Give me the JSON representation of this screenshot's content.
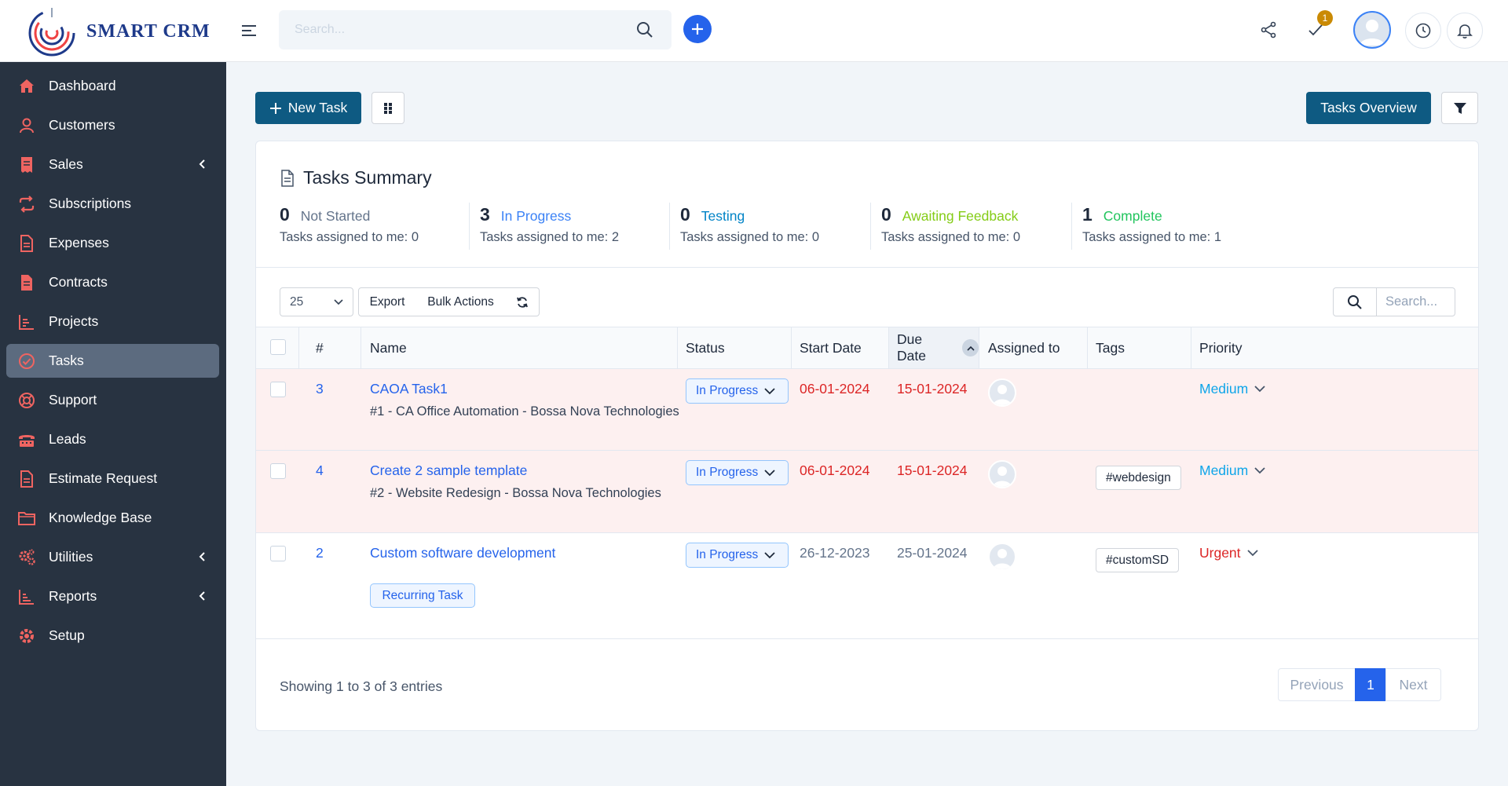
{
  "app": {
    "logo_text": "SMART CRM"
  },
  "header": {
    "search_placeholder": "Search...",
    "notification_count": "1"
  },
  "sidebar": {
    "items": [
      {
        "label": "Dashboard",
        "icon": "home-icon"
      },
      {
        "label": "Customers",
        "icon": "user-icon"
      },
      {
        "label": "Sales",
        "icon": "receipt-icon",
        "has_submenu": true
      },
      {
        "label": "Subscriptions",
        "icon": "repeat-icon"
      },
      {
        "label": "Expenses",
        "icon": "file-icon"
      },
      {
        "label": "Contracts",
        "icon": "contract-icon"
      },
      {
        "label": "Projects",
        "icon": "chart-icon"
      },
      {
        "label": "Tasks",
        "icon": "check-circle-icon",
        "active": true
      },
      {
        "label": "Support",
        "icon": "lifebuoy-icon"
      },
      {
        "label": "Leads",
        "icon": "tty-icon"
      },
      {
        "label": "Estimate Request",
        "icon": "file-icon"
      },
      {
        "label": "Knowledge Base",
        "icon": "folder-icon"
      },
      {
        "label": "Utilities",
        "icon": "cogs-icon",
        "has_submenu": true
      },
      {
        "label": "Reports",
        "icon": "bars-icon",
        "has_submenu": true
      },
      {
        "label": "Setup",
        "icon": "gear-icon"
      }
    ],
    "accent_color": "#ef6461"
  },
  "toolbar": {
    "new_task_label": "New Task",
    "overview_label": "Tasks Overview"
  },
  "summary": {
    "title": "Tasks Summary",
    "assigned_prefix": "Tasks assigned to me:",
    "stats": [
      {
        "count": "0",
        "label": "Not Started",
        "assigned": "Tasks assigned to me: 0",
        "color": "#64748b"
      },
      {
        "count": "3",
        "label": "In Progress",
        "assigned": "Tasks assigned to me: 2",
        "color": "#3b82f6"
      },
      {
        "count": "0",
        "label": "Testing",
        "assigned": "Tasks assigned to me: 0",
        "color": "#0284c7"
      },
      {
        "count": "0",
        "label": "Awaiting Feedback",
        "assigned": "Tasks assigned to me: 0",
        "color": "#84cc16"
      },
      {
        "count": "1",
        "label": "Complete",
        "assigned": "Tasks assigned to me: 1",
        "color": "#22c55e"
      }
    ]
  },
  "table_controls": {
    "page_length": "25",
    "export_label": "Export",
    "bulk_label": "Bulk Actions",
    "search_placeholder": "Search..."
  },
  "table": {
    "columns": [
      "#",
      "Name",
      "Status",
      "Start Date",
      "Due Date",
      "Assigned to",
      "Tags",
      "Priority"
    ],
    "rows": [
      {
        "id": "3",
        "name": "CAOA Task1",
        "related": "#1 - CA Office Automation - Bossa Nova Technologies",
        "status": "In Progress",
        "start_date": "06-01-2024",
        "due_date": "15-01-2024",
        "tag": "",
        "priority": "Medium",
        "overdue": true
      },
      {
        "id": "4",
        "name": "Create 2 sample template",
        "related": "#2 - Website Redesign - Bossa Nova Technologies",
        "status": "In Progress",
        "start_date": "06-01-2024",
        "due_date": "15-01-2024",
        "tag": "#webdesign",
        "priority": "Medium",
        "overdue": true
      },
      {
        "id": "2",
        "name": "Custom software development",
        "related": "",
        "badge": "Recurring Task",
        "status": "In Progress",
        "start_date": "26-12-2023",
        "due_date": "25-01-2024",
        "tag": "#customSD",
        "priority": "Urgent",
        "overdue": false
      }
    ]
  },
  "footer": {
    "info": "Showing 1 to 3 of 3 entries",
    "prev_label": "Previous",
    "current_page": "1",
    "next_label": "Next"
  },
  "colors": {
    "primary": "#0e5a82",
    "link": "#2563eb",
    "danger": "#dc2626",
    "medium": "#0ea5e9",
    "urgent": "#dc2626"
  }
}
